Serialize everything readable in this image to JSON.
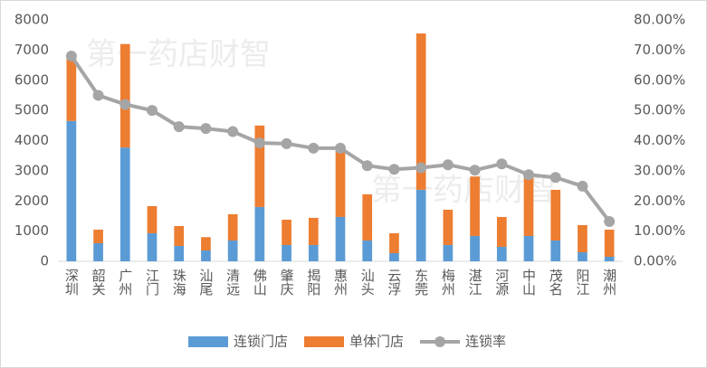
{
  "chart_data": {
    "type": "bar_line",
    "annotations": [
      "第一药店财智",
      "第一药店财智"
    ],
    "categories": [
      "深圳",
      "韶关",
      "广州",
      "江门",
      "珠海",
      "汕尾",
      "清远",
      "佛山",
      "肇庆",
      "揭阳",
      "惠州",
      "汕头",
      "云浮",
      "东莞",
      "梅州",
      "湛江",
      "河源",
      "中山",
      "茂名",
      "阳江",
      "潮州"
    ],
    "series": [
      {
        "name": "连锁门店",
        "type": "bar",
        "color": "#5b9bd5",
        "values": [
          4650,
          600,
          3770,
          930,
          510,
          360,
          690,
          1800,
          540,
          540,
          1470,
          690,
          270,
          2370,
          540,
          840,
          480,
          840,
          690,
          300,
          150
        ]
      },
      {
        "name": "单体门店",
        "type": "bar",
        "color": "#ed7d31",
        "values": [
          2150,
          450,
          3430,
          900,
          660,
          440,
          870,
          2700,
          840,
          900,
          2230,
          1530,
          660,
          5180,
          1170,
          1970,
          990,
          2000,
          1680,
          900,
          900
        ]
      },
      {
        "name": "连锁率",
        "type": "line",
        "axis": "y2",
        "color": "#a5a5a5",
        "values": [
          68,
          55,
          52,
          50,
          44.6,
          44,
          43,
          39.2,
          39,
          37.5,
          37.5,
          31.7,
          30.5,
          31,
          32,
          30.2,
          32.3,
          28.7,
          27.8,
          24.9,
          13.2
        ]
      }
    ],
    "stacked": true,
    "ylim": [
      0,
      8000
    ],
    "yticks": [
      0,
      1000,
      2000,
      3000,
      4000,
      5000,
      6000,
      7000,
      8000
    ],
    "y2lim": [
      0,
      80
    ],
    "y2ticks": [
      {
        "value": 0,
        "label": "0.00%"
      },
      {
        "value": 10,
        "label": "10.00%"
      },
      {
        "value": 20,
        "label": "20.00%"
      },
      {
        "value": 30,
        "label": "30.00%"
      },
      {
        "value": 40,
        "label": "40.00%"
      },
      {
        "value": 50,
        "label": "50.00%"
      },
      {
        "value": 60,
        "label": "60.00%"
      },
      {
        "value": 70,
        "label": "70.00%"
      },
      {
        "value": 80,
        "label": "80.00%"
      }
    ],
    "grid": false,
    "legend": "bottom"
  }
}
